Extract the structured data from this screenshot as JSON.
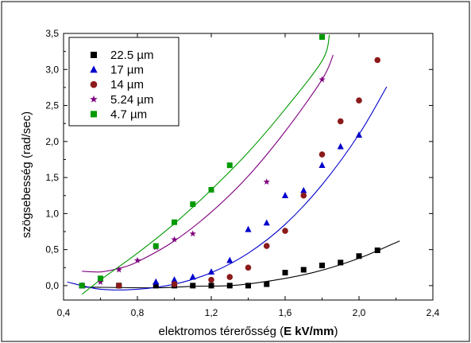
{
  "chart_data": {
    "type": "scatter",
    "title": "",
    "xlabel": {
      "prefix": "elektromos térerősség (",
      "bold": "E kV/mm",
      "suffix": ")"
    },
    "ylabel": "szögsebesség  (rad/sec)",
    "xlim": [
      0.4,
      2.4
    ],
    "ylim": [
      -0.2,
      3.5
    ],
    "x_tick_values": [
      0.4,
      0.8,
      1.2,
      1.6,
      2.0,
      2.4
    ],
    "x_tick_labels": [
      "0,4",
      "0,8",
      "1,2",
      "1,6",
      "2,0",
      "2,4"
    ],
    "y_tick_values": [
      0.0,
      0.5,
      1.0,
      1.5,
      2.0,
      2.5,
      3.0,
      3.5
    ],
    "y_tick_labels": [
      "0,0",
      "0,5",
      "1,0",
      "1,5",
      "2,0",
      "2,5",
      "3,0",
      "3,5"
    ],
    "grid": false,
    "legend_position": "top-left",
    "series": [
      {
        "name": "22.5 µm",
        "marker": "square",
        "color": "#000000",
        "x": [
          0.5,
          0.7,
          0.9,
          1.0,
          1.1,
          1.2,
          1.3,
          1.4,
          1.5,
          1.6,
          1.7,
          1.8,
          1.9,
          2.0,
          2.1
        ],
        "y": [
          0.0,
          0.0,
          0.0,
          0.0,
          0.0,
          0.0,
          0.0,
          0.0,
          0.02,
          0.18,
          0.22,
          0.28,
          0.32,
          0.41,
          0.49
        ],
        "fit": {
          "x": [
            0.5,
            0.9,
            1.1,
            1.3,
            1.45,
            1.6,
            1.75,
            1.9,
            2.05,
            2.22
          ],
          "y": [
            -0.02,
            -0.03,
            -0.01,
            0.0,
            0.04,
            0.1,
            0.18,
            0.29,
            0.43,
            0.62
          ]
        }
      },
      {
        "name": "17 µm",
        "marker": "triangle",
        "color": "#0000cc",
        "x": [
          0.5,
          0.9,
          1.0,
          1.1,
          1.2,
          1.3,
          1.4,
          1.5,
          1.6,
          1.7,
          1.8,
          1.9,
          2.0
        ],
        "y": [
          0.0,
          0.05,
          0.08,
          0.12,
          0.19,
          0.35,
          0.78,
          0.87,
          1.25,
          1.32,
          1.67,
          1.93,
          2.09
        ],
        "fit": {
          "x": [
            0.42,
            0.6,
            0.8,
            1.0,
            1.2,
            1.4,
            1.6,
            1.8,
            2.0,
            2.15
          ],
          "y": [
            0.05,
            -0.05,
            -0.05,
            0.02,
            0.18,
            0.45,
            0.85,
            1.4,
            2.1,
            2.76
          ]
        }
      },
      {
        "name": "14 µm",
        "marker": "circle",
        "color": "#8b1a1a",
        "x": [
          0.7,
          1.0,
          1.2,
          1.3,
          1.4,
          1.5,
          1.6,
          1.7,
          1.8,
          1.9,
          2.0,
          2.1
        ],
        "y": [
          0.0,
          0.02,
          0.08,
          0.12,
          0.25,
          0.55,
          0.76,
          1.25,
          1.82,
          2.28,
          2.57,
          3.13
        ],
        "fit": null
      },
      {
        "name": "5.24 µm",
        "marker": "star",
        "color": "#800080",
        "x": [
          0.6,
          0.7,
          0.8,
          0.9,
          1.0,
          1.1,
          1.5,
          1.8
        ],
        "y": [
          0.05,
          0.22,
          0.35,
          0.53,
          0.64,
          0.72,
          1.44,
          2.86
        ],
        "fit": {
          "x": [
            0.5,
            0.6,
            0.7,
            0.8,
            1.0,
            1.2,
            1.4,
            1.6,
            1.8,
            1.86
          ],
          "y": [
            0.2,
            0.19,
            0.24,
            0.33,
            0.62,
            1.02,
            1.52,
            2.14,
            2.86,
            3.2
          ]
        }
      },
      {
        "name": "4.7 µm",
        "marker": "square",
        "color": "#009900",
        "x": [
          0.5,
          0.6,
          0.9,
          1.0,
          1.1,
          1.2,
          1.3,
          1.8
        ],
        "y": [
          0.0,
          0.1,
          0.55,
          0.88,
          1.13,
          1.33,
          1.67,
          3.45
        ],
        "fit": {
          "x": [
            0.5,
            0.6,
            0.8,
            1.0,
            1.2,
            1.4,
            1.6,
            1.8,
            1.84
          ],
          "y": [
            -0.12,
            0.08,
            0.45,
            0.86,
            1.33,
            1.85,
            2.45,
            3.12,
            3.48
          ]
        }
      }
    ]
  }
}
